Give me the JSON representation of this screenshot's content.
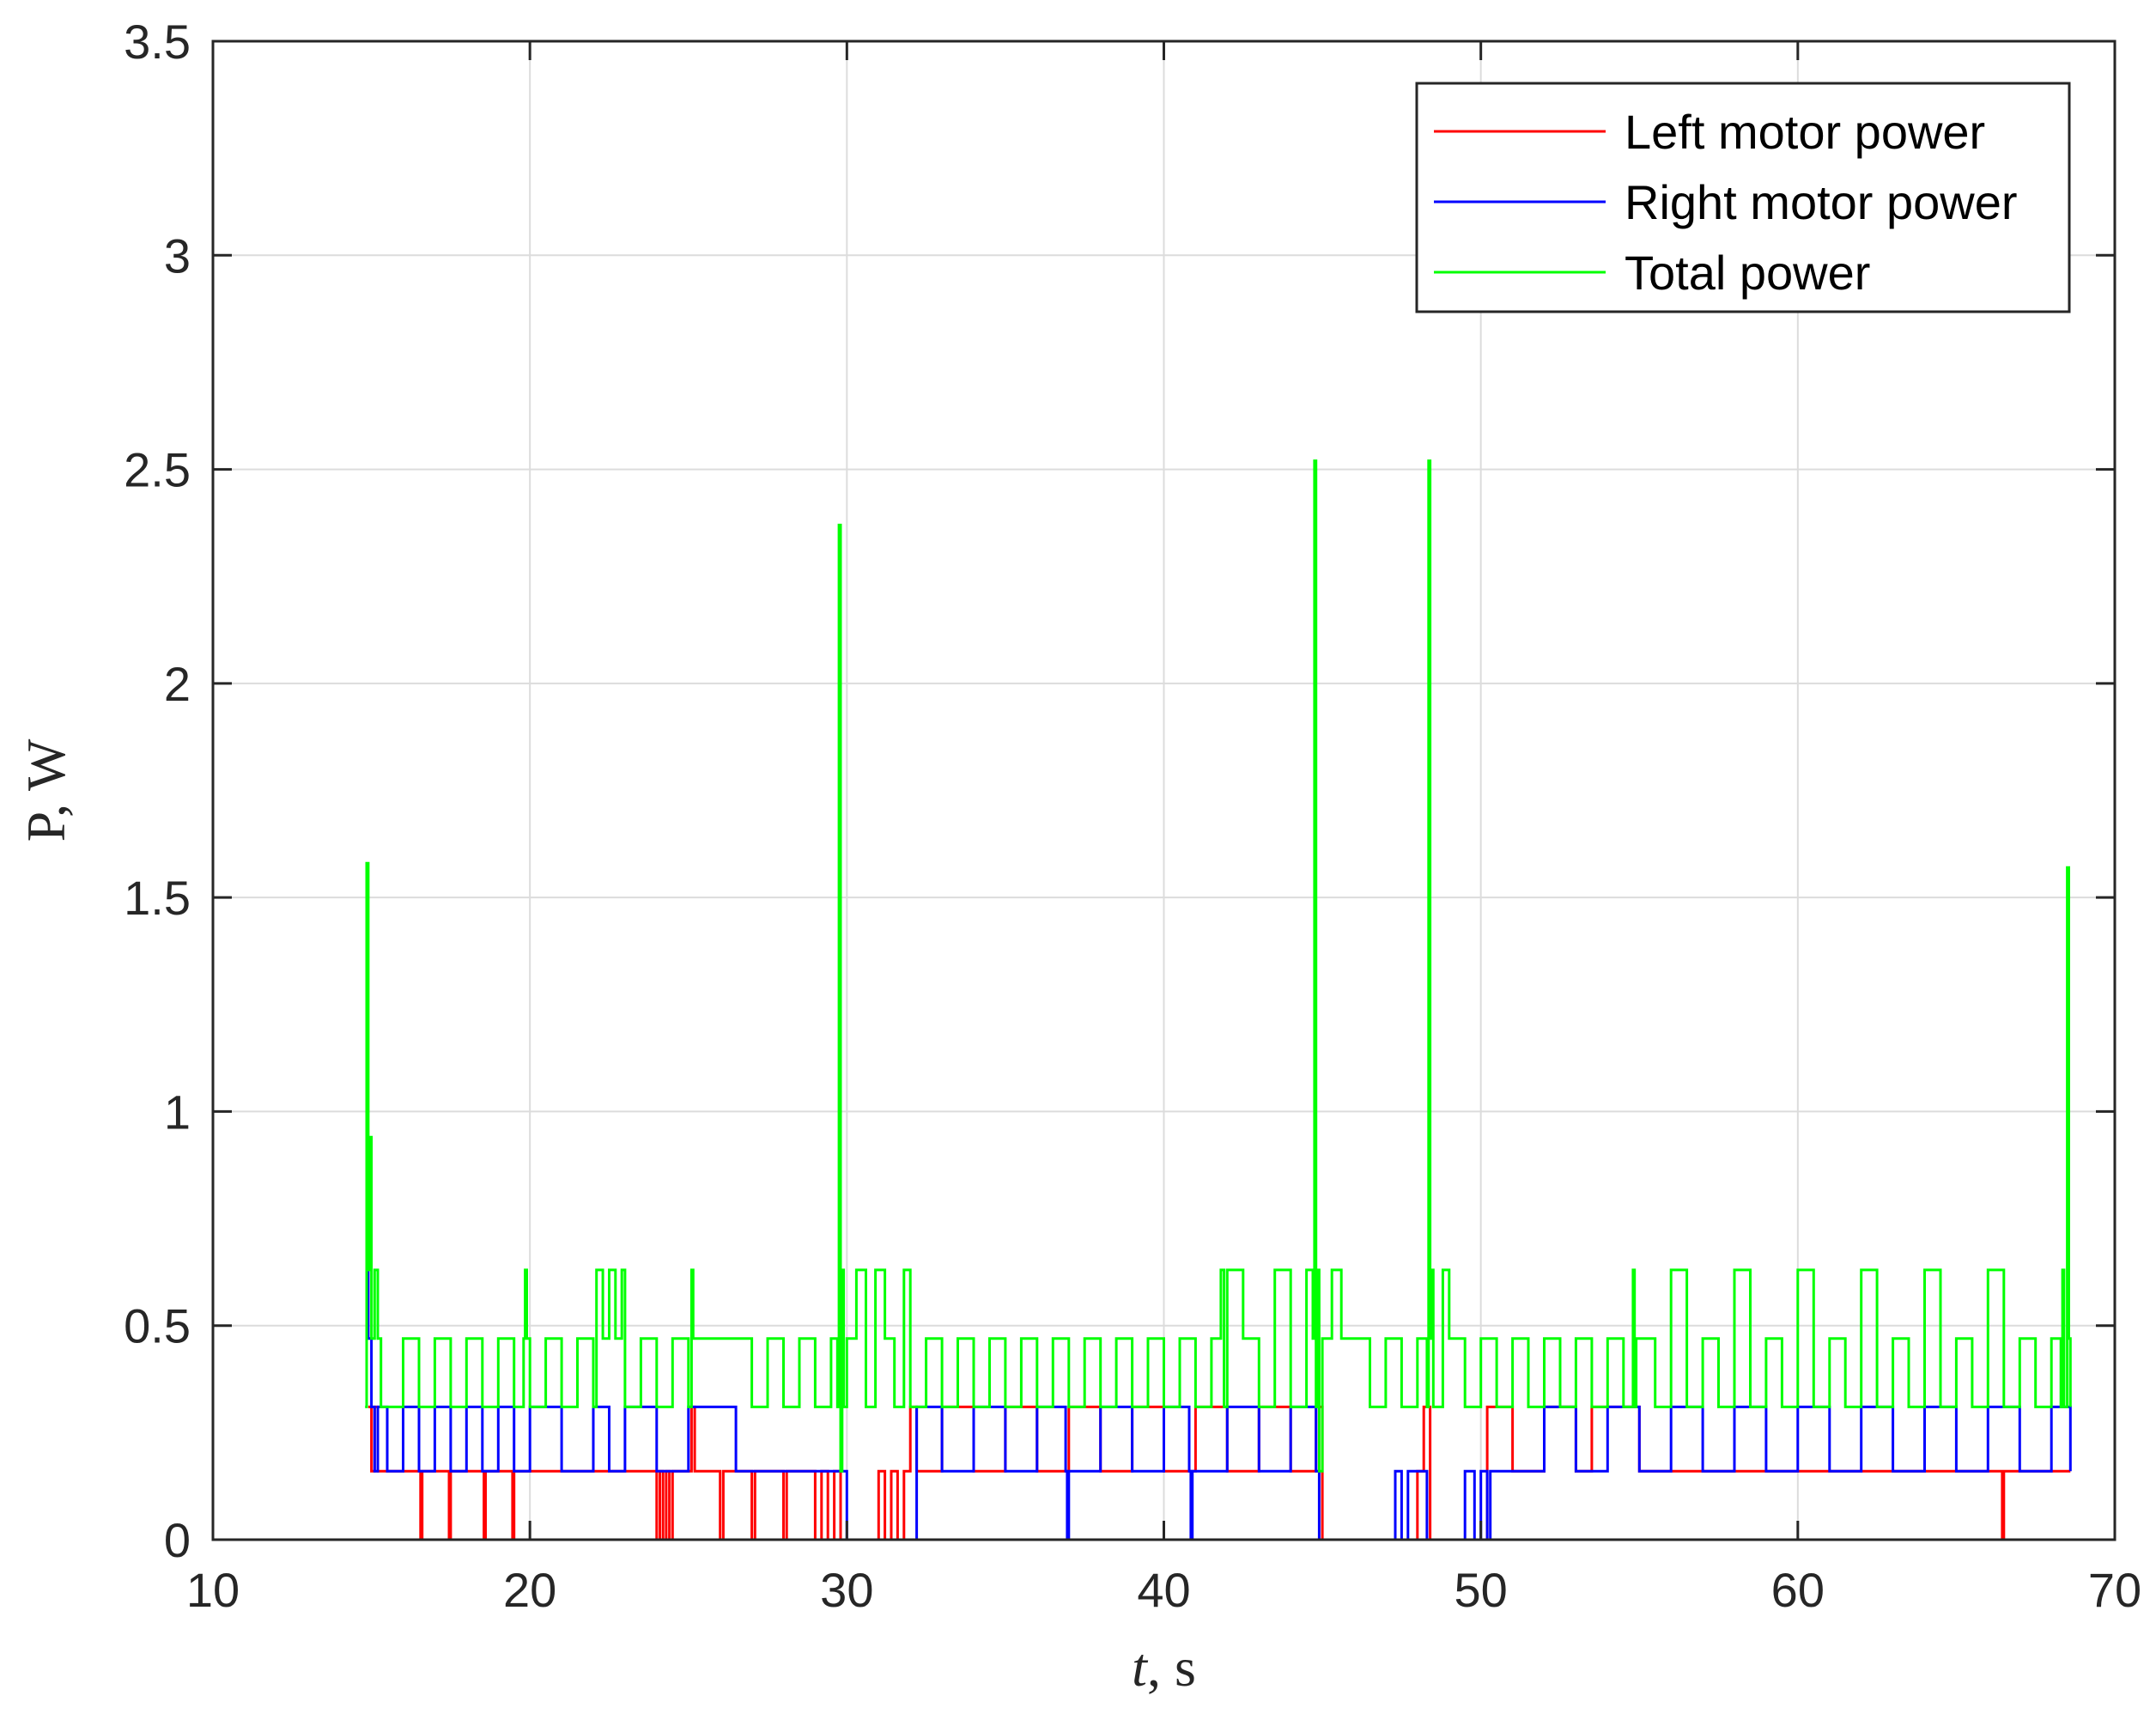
{
  "chart_data": {
    "type": "line",
    "title": "",
    "xlabel": {
      "italic": "t",
      "rest": ", s"
    },
    "ylabel": "P, W",
    "xlim": [
      10,
      70
    ],
    "ylim": [
      0,
      3.5
    ],
    "xticks": [
      10,
      20,
      30,
      40,
      50,
      60,
      70
    ],
    "yticks": [
      0,
      0.5,
      1,
      1.5,
      2,
      2.5,
      3,
      3.5
    ],
    "xtick_labels": [
      "10",
      "20",
      "30",
      "40",
      "50",
      "60",
      "70"
    ],
    "ytick_labels": [
      "0",
      "0.5",
      "1",
      "1.5",
      "2",
      "2.5",
      "3",
      "3.5"
    ],
    "grid": true,
    "legend_position": "top-right",
    "series": [
      {
        "name": "Left motor power",
        "color": "#ff0000",
        "x": [
          14.9,
          15.0,
          15.1,
          15.2,
          16.5,
          16.55,
          16.6,
          17.4,
          17.45,
          17.5,
          18.5,
          18.55,
          18.6,
          19.4,
          19.45,
          19.5,
          23.9,
          24.0,
          24.1,
          24.2,
          24.3,
          24.4,
          24.5,
          25.1,
          25.2,
          26.0,
          26.1,
          27.0,
          27.1,
          28.0,
          28.1,
          29.0,
          29.2,
          29.4,
          29.6,
          29.8,
          30.0,
          30.5,
          31.0,
          31.2,
          31.4,
          31.6,
          31.8,
          32.0,
          32.2,
          33.0,
          34.0,
          35.0,
          36.0,
          37.0,
          38.0,
          39.0,
          40.0,
          41.0,
          42.0,
          43.0,
          44.0,
          44.8,
          45.0,
          46.0,
          47.0,
          48.0,
          48.2,
          48.4,
          49.0,
          50.0,
          50.2,
          51.0,
          52.0,
          53.0,
          53.5,
          55.0,
          60.0,
          66.4,
          66.45,
          66.5,
          68.6
        ],
        "y": [
          0.31,
          0.16,
          0.31,
          0.16,
          0.16,
          0.0,
          0.16,
          0.16,
          0.0,
          0.16,
          0.16,
          0.0,
          0.16,
          0.16,
          0.0,
          0.16,
          0.16,
          0.0,
          0.16,
          0.0,
          0.16,
          0.0,
          0.16,
          0.31,
          0.16,
          0.0,
          0.16,
          0.0,
          0.16,
          0.0,
          0.16,
          0.0,
          0.16,
          0.0,
          0.16,
          0.0,
          0.0,
          0.0,
          0.16,
          0.0,
          0.16,
          0.0,
          0.16,
          0.31,
          0.16,
          0.31,
          0.16,
          0.31,
          0.16,
          0.31,
          0.16,
          0.31,
          0.16,
          0.31,
          0.16,
          0.31,
          0.16,
          0.31,
          0.0,
          0.0,
          0.0,
          0.16,
          0.31,
          0.0,
          0.0,
          0.0,
          0.31,
          0.16,
          0.31,
          0.16,
          0.31,
          0.16,
          0.16,
          0.16,
          0.0,
          0.16,
          0.16
        ]
      },
      {
        "name": "Right motor power",
        "color": "#0000ff",
        "x": [
          14.85,
          14.9,
          15.0,
          15.1,
          15.2,
          15.5,
          16.0,
          16.5,
          17.0,
          17.5,
          18.0,
          18.5,
          19.0,
          19.5,
          20.0,
          21.0,
          22.0,
          22.5,
          23.0,
          24.0,
          25.0,
          25.2,
          26.5,
          26.7,
          29.9,
          30.0,
          31.0,
          32.0,
          32.2,
          33.0,
          34.0,
          35.0,
          36.0,
          36.9,
          36.95,
          37.0,
          38.0,
          39.0,
          40.0,
          40.8,
          40.85,
          40.9,
          42.0,
          43.0,
          44.0,
          44.8,
          44.9,
          45.0,
          46.0,
          47.0,
          47.3,
          47.5,
          47.7,
          48.0,
          48.3,
          48.5,
          49.0,
          49.5,
          49.8,
          50.0,
          50.2,
          50.3,
          51.0,
          52.0,
          53.0,
          54.0,
          55.0,
          56.0,
          57.0,
          58.0,
          59.0,
          60.0,
          61.0,
          62.0,
          63.0,
          64.0,
          65.0,
          66.0,
          67.0,
          68.0,
          68.6
        ],
        "y": [
          0.78,
          0.47,
          0.31,
          0.16,
          0.31,
          0.16,
          0.31,
          0.16,
          0.31,
          0.16,
          0.31,
          0.16,
          0.31,
          0.16,
          0.31,
          0.16,
          0.31,
          0.16,
          0.31,
          0.16,
          0.31,
          0.31,
          0.16,
          0.16,
          0.16,
          0.0,
          0.0,
          0.0,
          0.31,
          0.16,
          0.31,
          0.16,
          0.31,
          0.16,
          0.0,
          0.16,
          0.31,
          0.16,
          0.31,
          0.16,
          0.0,
          0.16,
          0.31,
          0.16,
          0.31,
          0.16,
          0.0,
          0.0,
          0.0,
          0.0,
          0.16,
          0.0,
          0.16,
          0.16,
          0.0,
          0.0,
          0.0,
          0.16,
          0.0,
          0.16,
          0.0,
          0.16,
          0.16,
          0.31,
          0.16,
          0.31,
          0.16,
          0.31,
          0.16,
          0.31,
          0.16,
          0.31,
          0.16,
          0.31,
          0.16,
          0.31,
          0.16,
          0.31,
          0.16,
          0.31,
          0.16
        ]
      },
      {
        "name": "Total power",
        "color": "#00ff00",
        "x": [
          14.8,
          14.85,
          14.9,
          14.95,
          15.0,
          15.1,
          15.2,
          15.3,
          15.5,
          16.0,
          16.5,
          17.0,
          17.5,
          18.0,
          18.5,
          19.0,
          19.5,
          19.8,
          19.85,
          19.9,
          20.0,
          20.5,
          21.0,
          21.5,
          22.0,
          22.1,
          22.3,
          22.5,
          22.7,
          22.9,
          23.0,
          23.5,
          24.0,
          24.5,
          25.0,
          25.1,
          25.15,
          25.2,
          26.5,
          27.0,
          27.5,
          28.0,
          28.5,
          29.0,
          29.5,
          29.7,
          29.75,
          29.8,
          29.85,
          29.9,
          30.0,
          30.3,
          30.6,
          30.9,
          31.2,
          31.5,
          31.8,
          32.0,
          32.5,
          33.0,
          33.5,
          34.0,
          34.5,
          35.0,
          35.5,
          36.0,
          36.5,
          37.0,
          37.5,
          38.0,
          38.5,
          39.0,
          39.5,
          40.0,
          40.5,
          41.0,
          41.5,
          41.8,
          41.9,
          42.0,
          42.5,
          43.0,
          43.5,
          44.0,
          44.5,
          44.7,
          44.75,
          44.8,
          44.85,
          44.9,
          45.0,
          45.3,
          45.6,
          46.0,
          46.5,
          47.0,
          47.5,
          48.0,
          48.3,
          48.35,
          48.4,
          48.45,
          48.5,
          48.8,
          49.0,
          49.5,
          50.0,
          50.5,
          51.0,
          51.5,
          52.0,
          52.5,
          53.0,
          53.5,
          54.0,
          54.5,
          54.8,
          54.85,
          54.9,
          55.5,
          56.0,
          56.5,
          57.0,
          57.5,
          58.0,
          58.5,
          59.0,
          59.5,
          60.0,
          60.5,
          61.0,
          61.5,
          62.0,
          62.5,
          63.0,
          63.5,
          64.0,
          64.5,
          65.0,
          65.5,
          66.0,
          66.5,
          67.0,
          67.5,
          68.0,
          68.3,
          68.35,
          68.4,
          68.5,
          68.55,
          68.6
        ],
        "y": [
          0.31,
          1.58,
          0.63,
          0.94,
          0.47,
          0.63,
          0.47,
          0.31,
          0.31,
          0.47,
          0.31,
          0.47,
          0.31,
          0.47,
          0.31,
          0.47,
          0.31,
          0.47,
          0.63,
          0.47,
          0.31,
          0.47,
          0.31,
          0.47,
          0.31,
          0.63,
          0.47,
          0.63,
          0.47,
          0.63,
          0.31,
          0.47,
          0.31,
          0.47,
          0.31,
          0.63,
          0.47,
          0.47,
          0.47,
          0.31,
          0.47,
          0.31,
          0.47,
          0.31,
          0.47,
          0.31,
          2.37,
          0.16,
          0.63,
          0.31,
          0.47,
          0.63,
          0.31,
          0.63,
          0.47,
          0.31,
          0.63,
          0.31,
          0.47,
          0.31,
          0.47,
          0.31,
          0.47,
          0.31,
          0.47,
          0.31,
          0.47,
          0.31,
          0.47,
          0.31,
          0.47,
          0.31,
          0.47,
          0.31,
          0.47,
          0.31,
          0.47,
          0.63,
          0.31,
          0.63,
          0.47,
          0.31,
          0.63,
          0.31,
          0.63,
          0.47,
          2.52,
          0.31,
          0.63,
          0.16,
          0.47,
          0.63,
          0.47,
          0.47,
          0.31,
          0.47,
          0.31,
          0.47,
          0.31,
          2.52,
          0.47,
          0.63,
          0.31,
          0.63,
          0.47,
          0.31,
          0.47,
          0.31,
          0.47,
          0.31,
          0.47,
          0.31,
          0.47,
          0.31,
          0.47,
          0.31,
          0.63,
          0.31,
          0.47,
          0.31,
          0.63,
          0.31,
          0.47,
          0.31,
          0.63,
          0.31,
          0.47,
          0.31,
          0.63,
          0.31,
          0.47,
          0.31,
          0.63,
          0.31,
          0.47,
          0.31,
          0.63,
          0.31,
          0.47,
          0.31,
          0.63,
          0.31,
          0.47,
          0.31,
          0.47,
          0.31,
          0.63,
          0.31,
          1.57,
          0.47,
          0.31
        ]
      }
    ]
  }
}
